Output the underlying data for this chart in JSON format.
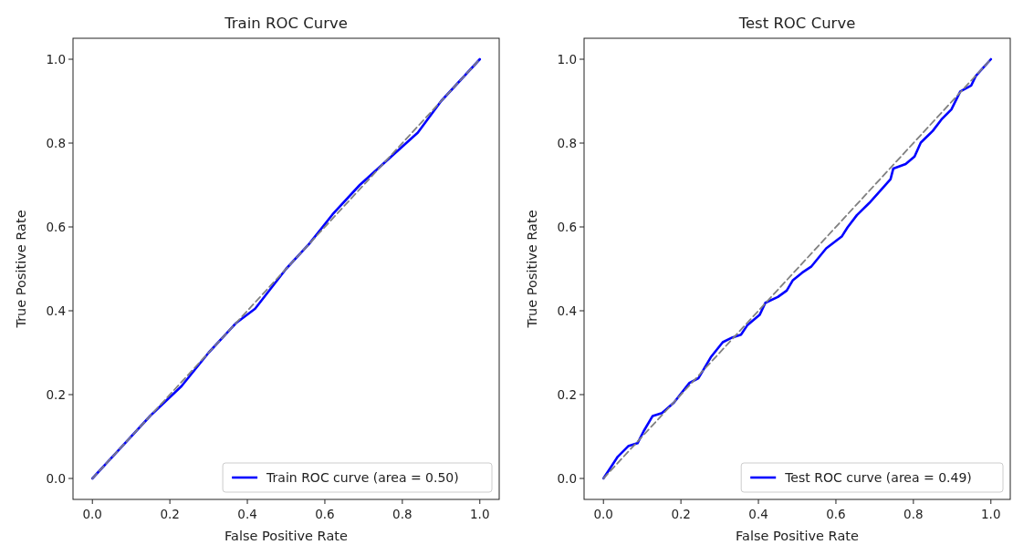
{
  "chart_data": [
    {
      "type": "line",
      "title": "Train ROC Curve",
      "xlabel": "False Positive Rate",
      "ylabel": "True Positive Rate",
      "xlim": [
        -0.05,
        1.05
      ],
      "ylim": [
        -0.05,
        1.05
      ],
      "xticks": [
        {
          "value": 0,
          "label": "0.0"
        },
        {
          "value": 0.2,
          "label": "0.2"
        },
        {
          "value": 0.4,
          "label": "0.4"
        },
        {
          "value": 0.6,
          "label": "0.6"
        },
        {
          "value": 0.8,
          "label": "0.8"
        },
        {
          "value": 1,
          "label": "1.0"
        }
      ],
      "yticks": [
        {
          "value": 0,
          "label": "0.0"
        },
        {
          "value": 0.2,
          "label": "0.2"
        },
        {
          "value": 0.4,
          "label": "0.4"
        },
        {
          "value": 0.6,
          "label": "0.6"
        },
        {
          "value": 0.8,
          "label": "0.8"
        },
        {
          "value": 1,
          "label": "1.0"
        }
      ],
      "legend": "bottom right",
      "grid": false,
      "series": [
        {
          "name": "Train ROC curve (area = 0.50)",
          "color": "#0000ff",
          "line_style": "solid",
          "x": [
            0,
            0.07,
            0.15,
            0.23,
            0.3,
            0.37,
            0.42,
            0.5,
            0.56,
            0.62,
            0.69,
            0.75,
            0.84,
            0.9,
            0.95,
            1
          ],
          "values": [
            0,
            0.07,
            0.15,
            0.22,
            0.3,
            0.37,
            0.405,
            0.5,
            0.56,
            0.63,
            0.7,
            0.75,
            0.825,
            0.9,
            0.95,
            1
          ]
        },
        {
          "color": "#808080",
          "line_style": "dashed",
          "x": [
            0,
            1
          ],
          "values": [
            0,
            1
          ]
        }
      ]
    },
    {
      "type": "line",
      "title": "Test ROC Curve",
      "xlabel": "False Positive Rate",
      "ylabel": "True Positive Rate",
      "xlim": [
        -0.05,
        1.05
      ],
      "ylim": [
        -0.05,
        1.05
      ],
      "xticks": [
        {
          "value": 0,
          "label": "0.0"
        },
        {
          "value": 0.2,
          "label": "0.2"
        },
        {
          "value": 0.4,
          "label": "0.4"
        },
        {
          "value": 0.6,
          "label": "0.6"
        },
        {
          "value": 0.8,
          "label": "0.8"
        },
        {
          "value": 1,
          "label": "1.0"
        }
      ],
      "yticks": [
        {
          "value": 0,
          "label": "0.0"
        },
        {
          "value": 0.2,
          "label": "0.2"
        },
        {
          "value": 0.4,
          "label": "0.4"
        },
        {
          "value": 0.6,
          "label": "0.6"
        },
        {
          "value": 0.8,
          "label": "0.8"
        },
        {
          "value": 1,
          "label": "1.0"
        }
      ],
      "legend": "bottom right",
      "grid": false,
      "series": [
        {
          "name": "Test ROC curve (area = 0.49)",
          "color": "#0000ff",
          "line_style": "solid",
          "x": [
            0,
            0.037,
            0.064,
            0.088,
            0.104,
            0.127,
            0.151,
            0.182,
            0.222,
            0.245,
            0.277,
            0.308,
            0.332,
            0.355,
            0.371,
            0.403,
            0.418,
            0.45,
            0.473,
            0.489,
            0.513,
            0.536,
            0.575,
            0.615,
            0.63,
            0.654,
            0.686,
            0.717,
            0.741,
            0.748,
            0.78,
            0.803,
            0.819,
            0.85,
            0.874,
            0.898,
            0.921,
            0.949,
            0.961,
            1
          ],
          "values": [
            0,
            0.052,
            0.077,
            0.084,
            0.113,
            0.149,
            0.156,
            0.181,
            0.228,
            0.239,
            0.289,
            0.325,
            0.336,
            0.343,
            0.365,
            0.39,
            0.419,
            0.433,
            0.448,
            0.473,
            0.491,
            0.505,
            0.549,
            0.577,
            0.599,
            0.628,
            0.657,
            0.689,
            0.714,
            0.739,
            0.75,
            0.768,
            0.801,
            0.829,
            0.858,
            0.88,
            0.923,
            0.937,
            0.96,
            1
          ]
        },
        {
          "color": "#808080",
          "line_style": "dashed",
          "x": [
            0,
            1
          ],
          "values": [
            0,
            1
          ]
        }
      ]
    }
  ]
}
